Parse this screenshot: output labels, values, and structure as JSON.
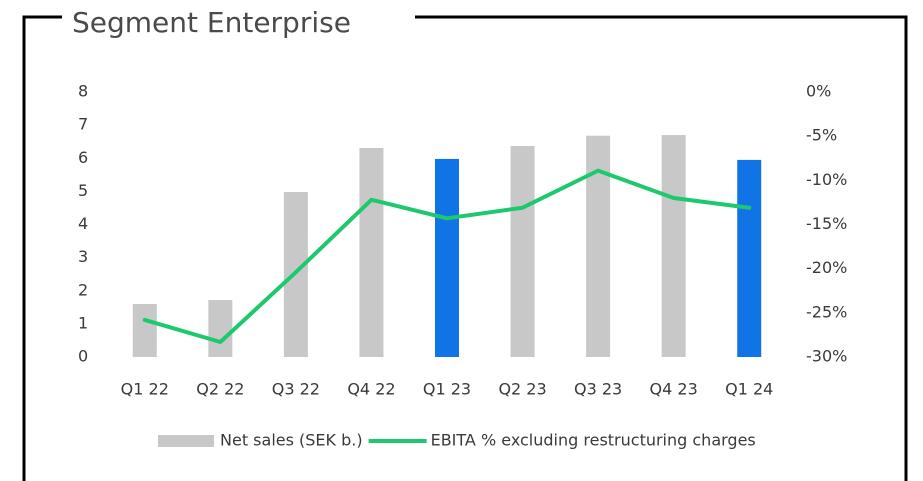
{
  "chart_data": {
    "type": "bar",
    "title": "Segment Enterprise",
    "categories": [
      "Q1 22",
      "Q2 22",
      "Q3 22",
      "Q4 22",
      "Q1 23",
      "Q2 23",
      "Q3 23",
      "Q4 23",
      "Q1 24"
    ],
    "series": [
      {
        "name": "Net sales (SEK b.)",
        "type": "bar",
        "color": "#c8c8c8",
        "colors": [
          "#c8c8c8",
          "#c8c8c8",
          "#c8c8c8",
          "#c8c8c8",
          "#1174e6",
          "#c8c8c8",
          "#c8c8c8",
          "#c8c8c8",
          "#1174e6"
        ],
        "values": [
          1.6,
          1.72,
          4.98,
          6.31,
          5.98,
          6.37,
          6.68,
          6.7,
          5.95
        ]
      },
      {
        "name": "EBITA % excluding restructuring charges",
        "type": "line",
        "axis": "y2",
        "color": "#1ec86e",
        "values": [
          -25.8,
          -28.3,
          -20.4,
          -12.2,
          -14.3,
          -13.1,
          -8.9,
          -12.0,
          -13.1
        ]
      }
    ],
    "ylim": [
      0,
      8
    ],
    "yticks": [
      0,
      1,
      2,
      3,
      4,
      5,
      6,
      7,
      8
    ],
    "y2lim": [
      -30,
      0
    ],
    "y2ticks": [
      {
        "value": -30,
        "label": "-30%"
      },
      {
        "value": -25,
        "label": "-25%"
      },
      {
        "value": -20,
        "label": "-20%"
      },
      {
        "value": -15,
        "label": "-15%"
      },
      {
        "value": -10,
        "label": "-10%"
      },
      {
        "value": -5,
        "label": "-5%"
      },
      {
        "value": 0,
        "label": "0%"
      }
    ],
    "grid": false,
    "legend": "bottom"
  }
}
